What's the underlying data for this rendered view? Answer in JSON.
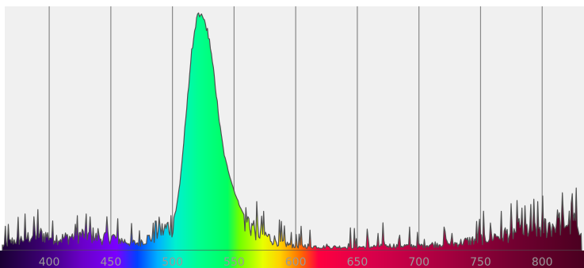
{
  "chart_data": {
    "type": "area",
    "title": "",
    "xlabel": "",
    "ylabel": "",
    "xlim": [
      362,
      832
    ],
    "ylim": [
      0,
      100
    ],
    "grid": true,
    "legend": "none",
    "x_ticks": [
      400,
      450,
      500,
      550,
      600,
      650,
      700,
      750,
      800
    ],
    "x_tick_labels": [
      "400",
      "450",
      "500",
      "550",
      "600",
      "650",
      "700",
      "750",
      "800"
    ],
    "series": [
      {
        "x": [
          362,
          370,
          380,
          390,
          400,
          410,
          420,
          430,
          440,
          450,
          460,
          470,
          475,
          480,
          485,
          490,
          495,
          500,
          503,
          506,
          509,
          512,
          515,
          518,
          520,
          523,
          526,
          530,
          534,
          538,
          542,
          546,
          550,
          555,
          560,
          565,
          570,
          580,
          590,
          600,
          610,
          620,
          630,
          640,
          650,
          660,
          670,
          680,
          690,
          700,
          710,
          720,
          730,
          740,
          750,
          760,
          770,
          780,
          790,
          800,
          810,
          820,
          832
        ],
        "y": [
          2,
          4,
          5,
          7,
          6,
          5,
          6,
          7,
          5,
          6,
          4,
          3,
          4,
          5,
          6,
          8,
          9,
          12,
          17,
          28,
          44,
          62,
          80,
          92,
          97,
          98,
          96,
          88,
          72,
          54,
          40,
          32,
          25,
          18,
          13,
          10,
          8,
          5,
          3,
          2,
          2,
          1.5,
          1.5,
          1.5,
          1.5,
          1.5,
          2,
          2,
          2,
          2,
          2.5,
          3,
          3,
          4,
          5,
          6,
          7,
          8,
          9,
          10,
          11,
          12,
          12
        ]
      }
    ]
  }
}
